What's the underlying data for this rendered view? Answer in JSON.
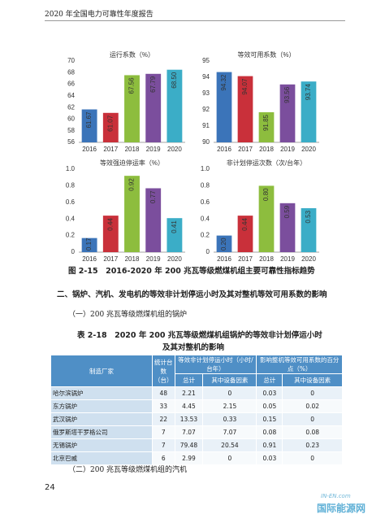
{
  "header": {
    "title": "2020 年全国电力可靠性年度报告"
  },
  "chart_data": [
    {
      "type": "bar",
      "title": "运行系数（%）",
      "categories": [
        "2016",
        "2017",
        "2018",
        "2019",
        "2020"
      ],
      "values": [
        61.67,
        61.07,
        67.56,
        67.79,
        68.5
      ],
      "value_labels": [
        "61.67",
        "61.07",
        "67.56",
        "67.79",
        "68.50"
      ],
      "colors": [
        "#3b74b9",
        "#c9303a",
        "#8dbd3e",
        "#7b4e9d",
        "#3badc7"
      ],
      "ylim": [
        56,
        70
      ],
      "yticks": [
        56,
        58,
        60,
        62,
        64,
        66,
        68,
        70
      ]
    },
    {
      "type": "bar",
      "title": "等效可用系数（%）",
      "categories": [
        "2016",
        "2017",
        "2018",
        "2019",
        "2020"
      ],
      "values": [
        94.32,
        94.07,
        91.85,
        93.56,
        93.74
      ],
      "colors": [
        "#3b74b9",
        "#c9303a",
        "#8dbd3e",
        "#7b4e9d",
        "#3badc7"
      ],
      "ylim": [
        90,
        95
      ],
      "yticks": [
        90,
        91,
        92,
        93,
        94,
        95
      ]
    },
    {
      "type": "bar",
      "title": "等效强迫停运率（%）",
      "categories": [
        "2016",
        "2017",
        "2018",
        "2019",
        "2020"
      ],
      "values": [
        0.17,
        0.44,
        0.92,
        0.77,
        0.41
      ],
      "colors": [
        "#3b74b9",
        "#c9303a",
        "#8dbd3e",
        "#7b4e9d",
        "#3badc7"
      ],
      "ylim": [
        0,
        1
      ],
      "yticks": [
        0,
        0.2,
        0.4,
        0.6,
        0.8,
        {
          "value": 1,
          "label": "1.0"
        }
      ]
    },
    {
      "type": "bar",
      "title": "非计划停运次数（次/台年）",
      "categories": [
        "2016",
        "2017",
        "2018",
        "2019",
        "2020"
      ],
      "values": [
        0.2,
        0.44,
        0.8,
        0.59,
        0.53
      ],
      "value_labels": [
        "0.20",
        "0.44",
        "0.80",
        "0.59",
        "0.53"
      ],
      "colors": [
        "#3b74b9",
        "#c9303a",
        "#8dbd3e",
        "#7b4e9d",
        "#3badc7"
      ],
      "ylim": [
        0,
        1
      ],
      "yticks": [
        0,
        0.2,
        0.4,
        0.6,
        0.8,
        {
          "value": 1,
          "label": "1.0"
        }
      ]
    }
  ],
  "figure_caption": "图 2-15　2016-2020 年 200 兆瓦等级燃煤机组主要可靠性指标趋势",
  "section_heading": "二、锅炉、汽机、发电机的等效非计划停运小时及其对整机等效可用系数的影响",
  "subsection_1": "（一）200 兆瓦等级燃煤机组的锅炉",
  "table": {
    "title": [
      "表 2-18　2020 年 200 兆瓦等级燃煤机组锅炉的等效非计划停运小时",
      "及其对整机的影响"
    ],
    "header": [
      "制造厂家",
      "统计台数（台）",
      "等效非计划停运小时（小时/台年）",
      "影响整机等效可用系数的百分点（%）"
    ],
    "subheader": [
      "总计",
      "其中设备因素",
      "总计",
      "其中设备因素"
    ],
    "rows": [
      [
        "哈尔滨锅炉",
        "48",
        "2.21",
        "0",
        "0.03",
        "0"
      ],
      [
        "东方锅炉",
        "33",
        "4.45",
        "2.15",
        "0.05",
        "0.02"
      ],
      [
        "武汉锅炉",
        "22",
        "13.53",
        "0.33",
        "0.15",
        "0"
      ],
      [
        "俄罗斯塔干罗格公司",
        "7",
        "7.07",
        "7.07",
        "0.08",
        "0.08"
      ],
      [
        "无锡锅炉",
        "7",
        "79.48",
        "20.54",
        "0.91",
        "0.23"
      ],
      [
        "北京巴威",
        "6",
        "2.99",
        "0",
        "0.03",
        "0"
      ]
    ]
  },
  "subsection_2": "（二）200 兆瓦等级燃煤机组的汽机",
  "page_number": "24",
  "watermark": {
    "site": "IN-EN.com",
    "name": "国际能源网"
  }
}
